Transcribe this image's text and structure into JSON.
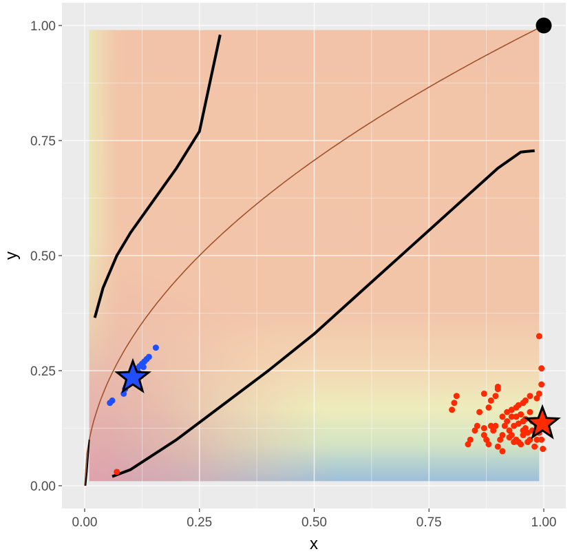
{
  "chart_data": {
    "type": "scatter",
    "title": "",
    "xlabel": "x",
    "ylabel": "y",
    "xlim": [
      -0.045,
      1.045
    ],
    "ylim": [
      -0.05,
      1.05
    ],
    "xticks": [
      "0.00",
      "0.25",
      "0.50",
      "0.75",
      "1.00"
    ],
    "yticks": [
      "0.00",
      "0.25",
      "0.50",
      "0.75",
      "1.00"
    ],
    "grid": true,
    "background_color": "#ebebeb",
    "heatmap": {
      "x_range": [
        0.01,
        0.99
      ],
      "y_range": [
        0.01,
        0.99
      ],
      "colors": {
        "high": "#f1b79d",
        "top_left_edge": "#e8e7b0",
        "bottom_left": "#e0a0a6",
        "mid_band": "#eaeab8",
        "low_band": "#b4d4c4",
        "bottom": "#95b9d7"
      }
    },
    "reference_curve": {
      "description_points": [
        [
          0,
          0.0
        ],
        [
          0.01,
          0.1
        ],
        [
          0.05,
          0.22
        ],
        [
          0.1,
          0.316
        ],
        [
          0.2,
          0.447
        ],
        [
          0.3,
          0.548
        ],
        [
          0.4,
          0.632
        ],
        [
          0.5,
          0.707
        ],
        [
          0.6,
          0.775
        ],
        [
          0.7,
          0.837
        ],
        [
          0.8,
          0.894
        ],
        [
          0.9,
          0.949
        ],
        [
          1.0,
          1.0
        ]
      ],
      "color": "#a0522d"
    },
    "boundary_curves": [
      {
        "points": [
          [
            0.002,
            0.0
          ],
          [
            0.005,
            0.03
          ],
          [
            0.01,
            0.1
          ]
        ],
        "width": "thin"
      },
      {
        "points": [
          [
            0.022,
            0.365
          ],
          [
            0.04,
            0.43
          ],
          [
            0.07,
            0.5
          ],
          [
            0.1,
            0.55
          ],
          [
            0.15,
            0.62
          ],
          [
            0.2,
            0.69
          ],
          [
            0.25,
            0.77
          ],
          [
            0.295,
            0.98
          ]
        ],
        "width": "thick"
      },
      {
        "points": [
          [
            0.06,
            0.02
          ],
          [
            0.1,
            0.035
          ],
          [
            0.2,
            0.1
          ],
          [
            0.3,
            0.175
          ],
          [
            0.4,
            0.25
          ],
          [
            0.5,
            0.33
          ],
          [
            0.6,
            0.42
          ],
          [
            0.7,
            0.51
          ],
          [
            0.8,
            0.6
          ],
          [
            0.9,
            0.69
          ],
          [
            0.95,
            0.725
          ],
          [
            0.98,
            0.728
          ]
        ],
        "width": "thick"
      }
    ],
    "series": [
      {
        "color": "#1f4fff",
        "points": [
          [
            0.055,
            0.18
          ],
          [
            0.06,
            0.185
          ],
          [
            0.085,
            0.2
          ],
          [
            0.088,
            0.21
          ],
          [
            0.09,
            0.215
          ],
          [
            0.095,
            0.22
          ],
          [
            0.1,
            0.225
          ],
          [
            0.105,
            0.23
          ],
          [
            0.11,
            0.24
          ],
          [
            0.11,
            0.25
          ],
          [
            0.115,
            0.255
          ],
          [
            0.12,
            0.26
          ],
          [
            0.125,
            0.265
          ],
          [
            0.13,
            0.27
          ],
          [
            0.135,
            0.275
          ],
          [
            0.14,
            0.28
          ],
          [
            0.155,
            0.3
          ],
          [
            0.1,
            0.235
          ],
          [
            0.118,
            0.245
          ],
          [
            0.128,
            0.258
          ]
        ],
        "star": [
          0.105,
          0.235
        ]
      },
      {
        "color": "#ff2a00",
        "points": [
          [
            0.07,
            0.03
          ],
          [
            0.99,
            0.325
          ],
          [
            0.995,
            0.255
          ],
          [
            0.995,
            0.22
          ],
          [
            0.99,
            0.2
          ],
          [
            0.985,
            0.19
          ],
          [
            0.97,
            0.195
          ],
          [
            0.96,
            0.185
          ],
          [
            0.955,
            0.18
          ],
          [
            0.945,
            0.175
          ],
          [
            0.94,
            0.17
          ],
          [
            0.93,
            0.165
          ],
          [
            0.92,
            0.16
          ],
          [
            0.91,
            0.15
          ],
          [
            0.9,
            0.21
          ],
          [
            0.9,
            0.215
          ],
          [
            0.895,
            0.195
          ],
          [
            0.885,
            0.185
          ],
          [
            0.88,
            0.17
          ],
          [
            0.87,
            0.2
          ],
          [
            0.86,
            0.16
          ],
          [
            0.855,
            0.13
          ],
          [
            0.85,
            0.12
          ],
          [
            0.84,
            0.1
          ],
          [
            0.835,
            0.09
          ],
          [
            0.81,
            0.195
          ],
          [
            0.805,
            0.18
          ],
          [
            0.8,
            0.165
          ],
          [
            0.87,
            0.11
          ],
          [
            0.875,
            0.1
          ],
          [
            0.88,
            0.09
          ],
          [
            0.89,
            0.12
          ],
          [
            0.895,
            0.13
          ],
          [
            0.9,
            0.085
          ],
          [
            0.905,
            0.1
          ],
          [
            0.91,
            0.075
          ],
          [
            0.92,
            0.14
          ],
          [
            0.925,
            0.12
          ],
          [
            0.93,
            0.11
          ],
          [
            0.935,
            0.13
          ],
          [
            0.94,
            0.1
          ],
          [
            0.945,
            0.095
          ],
          [
            0.95,
            0.09
          ],
          [
            0.955,
            0.14
          ],
          [
            0.96,
            0.125
          ],
          [
            0.965,
            0.115
          ],
          [
            0.97,
            0.1
          ],
          [
            0.975,
            0.12
          ],
          [
            0.98,
            0.085
          ],
          [
            0.985,
            0.13
          ],
          [
            0.99,
            0.115
          ],
          [
            0.995,
            0.1
          ],
          [
            0.998,
            0.08
          ],
          [
            0.94,
            0.15
          ],
          [
            0.95,
            0.155
          ],
          [
            0.96,
            0.145
          ],
          [
            0.97,
            0.16
          ],
          [
            0.915,
            0.13
          ],
          [
            0.925,
            0.105
          ],
          [
            0.935,
            0.095
          ],
          [
            0.945,
            0.135
          ],
          [
            0.955,
            0.11
          ],
          [
            0.965,
            0.095
          ],
          [
            0.985,
            0.1
          ],
          [
            0.99,
            0.14
          ],
          [
            0.975,
            0.14
          ],
          [
            0.885,
            0.13
          ],
          [
            0.87,
            0.125
          ],
          [
            0.91,
            0.11
          ],
          [
            0.93,
            0.15
          ],
          [
            0.955,
            0.12
          ]
        ],
        "star": [
          0.997,
          0.135
        ]
      }
    ],
    "endpoint": [
      1.0,
      1.0
    ]
  }
}
